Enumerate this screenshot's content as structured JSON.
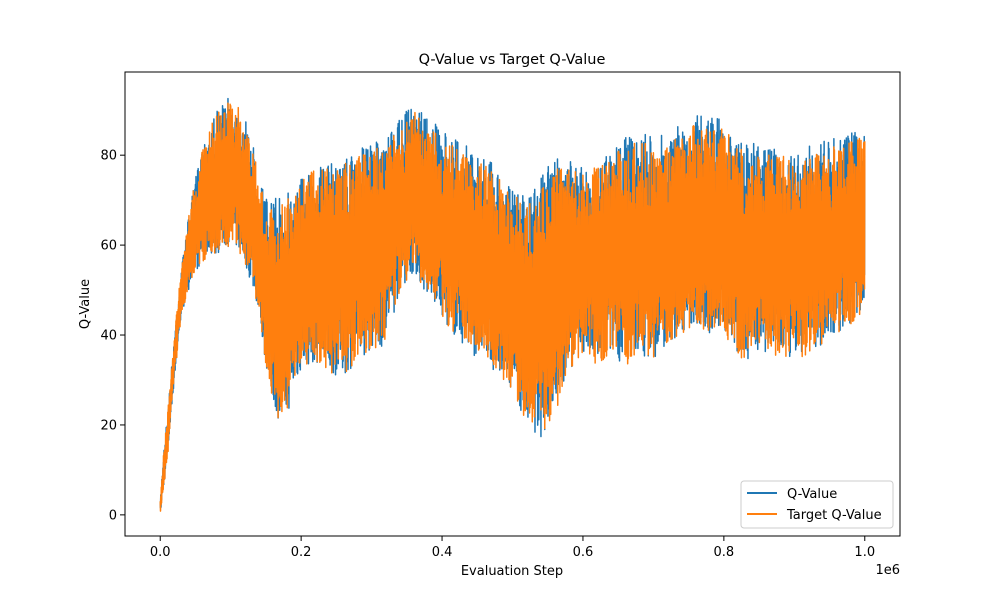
{
  "chart_data": {
    "type": "line",
    "title": "Q-Value vs Target Q-Value",
    "xlabel": "Evaluation Step",
    "ylabel": "Q-Value",
    "x_offset_text": "1e6",
    "xlim": [
      -50000,
      1050000
    ],
    "ylim": [
      -4.7,
      98.5
    ],
    "x_ticks": [
      0,
      200000,
      400000,
      600000,
      800000,
      1000000
    ],
    "x_tick_labels": [
      "0.0",
      "0.2",
      "0.4",
      "0.6",
      "0.8",
      "1.0"
    ],
    "y_ticks": [
      0,
      20,
      40,
      60,
      80
    ],
    "y_tick_labels": [
      "0",
      "20",
      "40",
      "60",
      "80"
    ],
    "grid": false,
    "legend_position": "lower-right",
    "colors": {
      "q_value": "#1f77b4",
      "target_q_value": "#ff7f0e"
    },
    "x": [
      0,
      5000,
      10000,
      20000,
      30000,
      40000,
      50000,
      60000,
      70000,
      80000,
      90000,
      100000,
      110000,
      120000,
      130000,
      140000,
      150000,
      160000,
      170000,
      180000,
      190000,
      200000,
      220000,
      240000,
      260000,
      280000,
      300000,
      320000,
      340000,
      360000,
      380000,
      400000,
      420000,
      440000,
      460000,
      480000,
      500000,
      520000,
      540000,
      560000,
      580000,
      600000,
      620000,
      640000,
      660000,
      680000,
      700000,
      720000,
      740000,
      760000,
      780000,
      800000,
      820000,
      840000,
      860000,
      880000,
      900000,
      920000,
      940000,
      960000,
      980000,
      1000000
    ],
    "series": [
      {
        "name": "Q-Value",
        "upper": [
          3,
          15,
          22,
          40,
          55,
          66,
          75,
          83,
          87,
          90,
          92,
          93,
          92,
          88,
          84,
          76,
          71,
          70,
          71,
          72,
          74,
          76,
          78,
          78,
          80,
          81,
          83,
          83,
          88,
          92,
          89,
          85,
          84,
          82,
          80,
          77,
          72,
          71,
          76,
          80,
          79,
          77,
          79,
          82,
          84,
          85,
          84,
          85,
          87,
          89,
          89,
          88,
          83,
          83,
          82,
          81,
          80,
          82,
          83,
          84,
          85,
          87
        ],
        "lower": [
          0,
          6,
          12,
          30,
          44,
          50,
          54,
          56,
          58,
          58,
          59,
          60,
          59,
          56,
          51,
          45,
          33,
          25,
          20,
          22,
          27,
          32,
          34,
          31,
          31,
          34,
          37,
          37,
          50,
          54,
          48,
          44,
          39,
          36,
          34,
          31,
          28,
          20,
          17,
          22,
          32,
          36,
          33,
          36,
          33,
          36,
          34,
          38,
          40,
          42,
          40,
          41,
          34,
          35,
          36,
          35,
          34,
          36,
          38,
          40,
          42,
          46
        ]
      },
      {
        "name": "Target Q-Value",
        "upper": [
          3,
          15,
          22,
          40,
          55,
          66,
          75,
          83,
          86,
          89,
          91,
          92,
          91,
          87,
          83,
          75,
          70,
          69,
          70,
          71,
          73,
          75,
          77,
          77,
          79,
          80,
          82,
          82,
          86,
          90,
          87,
          83,
          82,
          80,
          78,
          75,
          71,
          70,
          75,
          78,
          77,
          76,
          78,
          80,
          82,
          83,
          82,
          83,
          85,
          87,
          87,
          86,
          82,
          81,
          80,
          80,
          79,
          80,
          82,
          82,
          83,
          85
        ],
        "lower": [
          0,
          6,
          12,
          30,
          44,
          50,
          54,
          56,
          58,
          58,
          59,
          60,
          59,
          56,
          51,
          45,
          33,
          25,
          20,
          22,
          27,
          32,
          34,
          31,
          31,
          34,
          37,
          37,
          50,
          54,
          48,
          44,
          39,
          36,
          34,
          31,
          28,
          20,
          17,
          22,
          32,
          36,
          33,
          36,
          33,
          36,
          34,
          38,
          40,
          42,
          40,
          41,
          34,
          35,
          36,
          35,
          34,
          36,
          38,
          40,
          42,
          46
        ]
      }
    ]
  }
}
